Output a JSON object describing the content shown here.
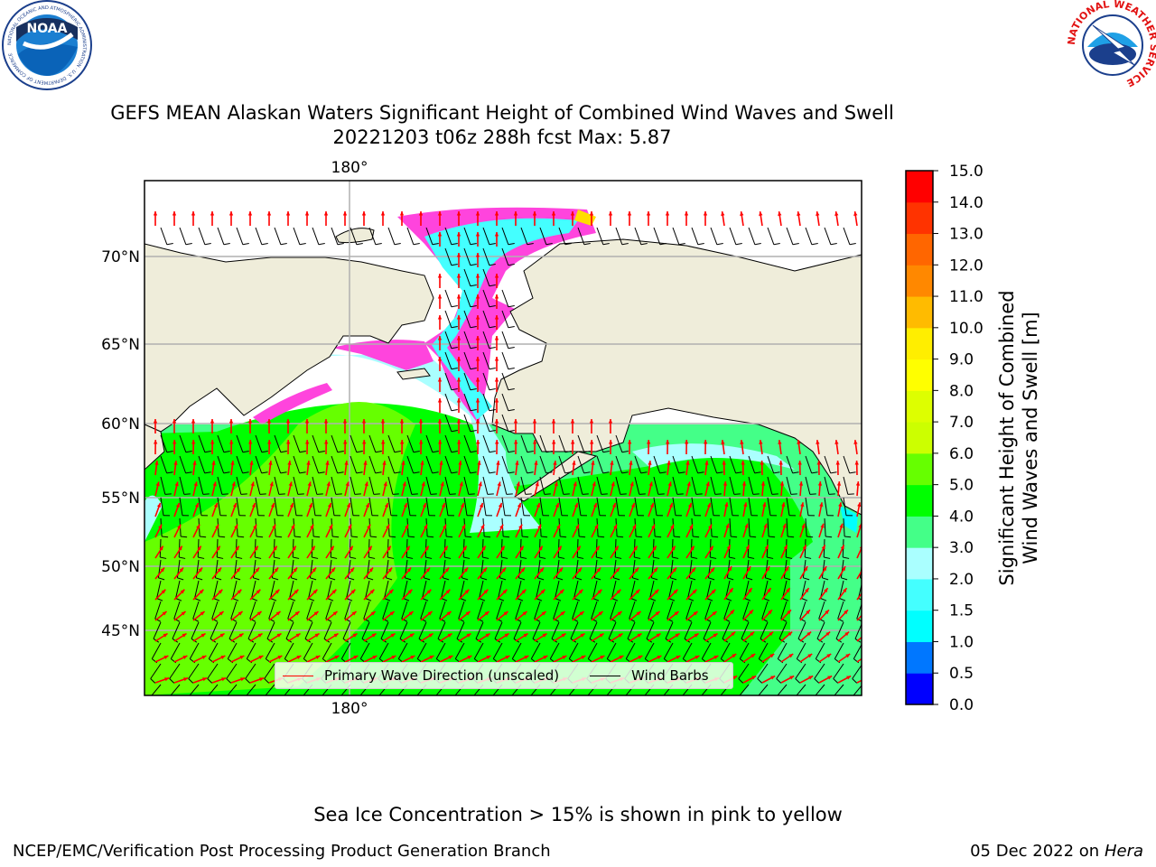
{
  "title": {
    "line1": "GEFS MEAN Alaskan Waters Significant Height of Combined Wind Waves and Swell",
    "line2": "20221203 t06z 288h fcst   Max: 5.87"
  },
  "logos": {
    "noaa": {
      "text": "NOAA",
      "ring_text": "NATIONAL OCEANIC AND ATMOSPHERIC ADMINISTRATION · U.S. DEPARTMENT OF COMMERCE"
    },
    "nws": {
      "ring_text": "NATIONAL WEATHER SERVICE"
    }
  },
  "map": {
    "lon_labels": {
      "top": "180°",
      "bottom": "180°"
    },
    "lat_labels": [
      "70°N",
      "65°N",
      "60°N",
      "55°N",
      "50°N",
      "45°N"
    ],
    "colors": {
      "land": "#efedda",
      "grid": "#b0b0b0",
      "wave_arrow": "#ff0000",
      "wind_barb": "#000000"
    }
  },
  "legend": {
    "wave_label": "Primary Wave Direction (unscaled)",
    "wind_label": "Wind Barbs"
  },
  "colorbar": {
    "title_line1": "Significant Height of Combined",
    "title_line2": "Wind Waves and Swell [m]",
    "ticks": [
      "15.0",
      "14.0",
      "13.0",
      "12.0",
      "11.0",
      "10.0",
      "9.0",
      "8.0",
      "7.0",
      "6.0",
      "5.0",
      "4.0",
      "3.0",
      "2.0",
      "1.5",
      "1.0",
      "0.5",
      "0.0"
    ],
    "bins": [
      {
        "from": 0.0,
        "to": 0.5,
        "color": "#0000ff"
      },
      {
        "from": 0.5,
        "to": 1.0,
        "color": "#0077ff"
      },
      {
        "from": 1.0,
        "to": 1.5,
        "color": "#00ffff"
      },
      {
        "from": 1.5,
        "to": 2.0,
        "color": "#44ffff"
      },
      {
        "from": 2.0,
        "to": 3.0,
        "color": "#aaffff"
      },
      {
        "from": 3.0,
        "to": 4.0,
        "color": "#44ff88"
      },
      {
        "from": 4.0,
        "to": 5.0,
        "color": "#00ff00"
      },
      {
        "from": 5.0,
        "to": 6.0,
        "color": "#66ff00"
      },
      {
        "from": 6.0,
        "to": 7.0,
        "color": "#ccff00"
      },
      {
        "from": 7.0,
        "to": 8.0,
        "color": "#ddff00"
      },
      {
        "from": 8.0,
        "to": 9.0,
        "color": "#ffff00"
      },
      {
        "from": 9.0,
        "to": 10.0,
        "color": "#ffee00"
      },
      {
        "from": 10.0,
        "to": 11.0,
        "color": "#ffbb00"
      },
      {
        "from": 11.0,
        "to": 12.0,
        "color": "#ff8800"
      },
      {
        "from": 12.0,
        "to": 13.0,
        "color": "#ff6600"
      },
      {
        "from": 13.0,
        "to": 14.0,
        "color": "#ff3300"
      },
      {
        "from": 14.0,
        "to": 15.0,
        "color": "#ff0000"
      }
    ]
  },
  "footer": {
    "note": "Sea Ice Concentration > 15% is shown in pink to yellow",
    "left": "NCEP/EMC/Verification Post Processing Product Generation Branch",
    "right_date": "05 Dec 2022 on",
    "right_host": "Hera"
  }
}
